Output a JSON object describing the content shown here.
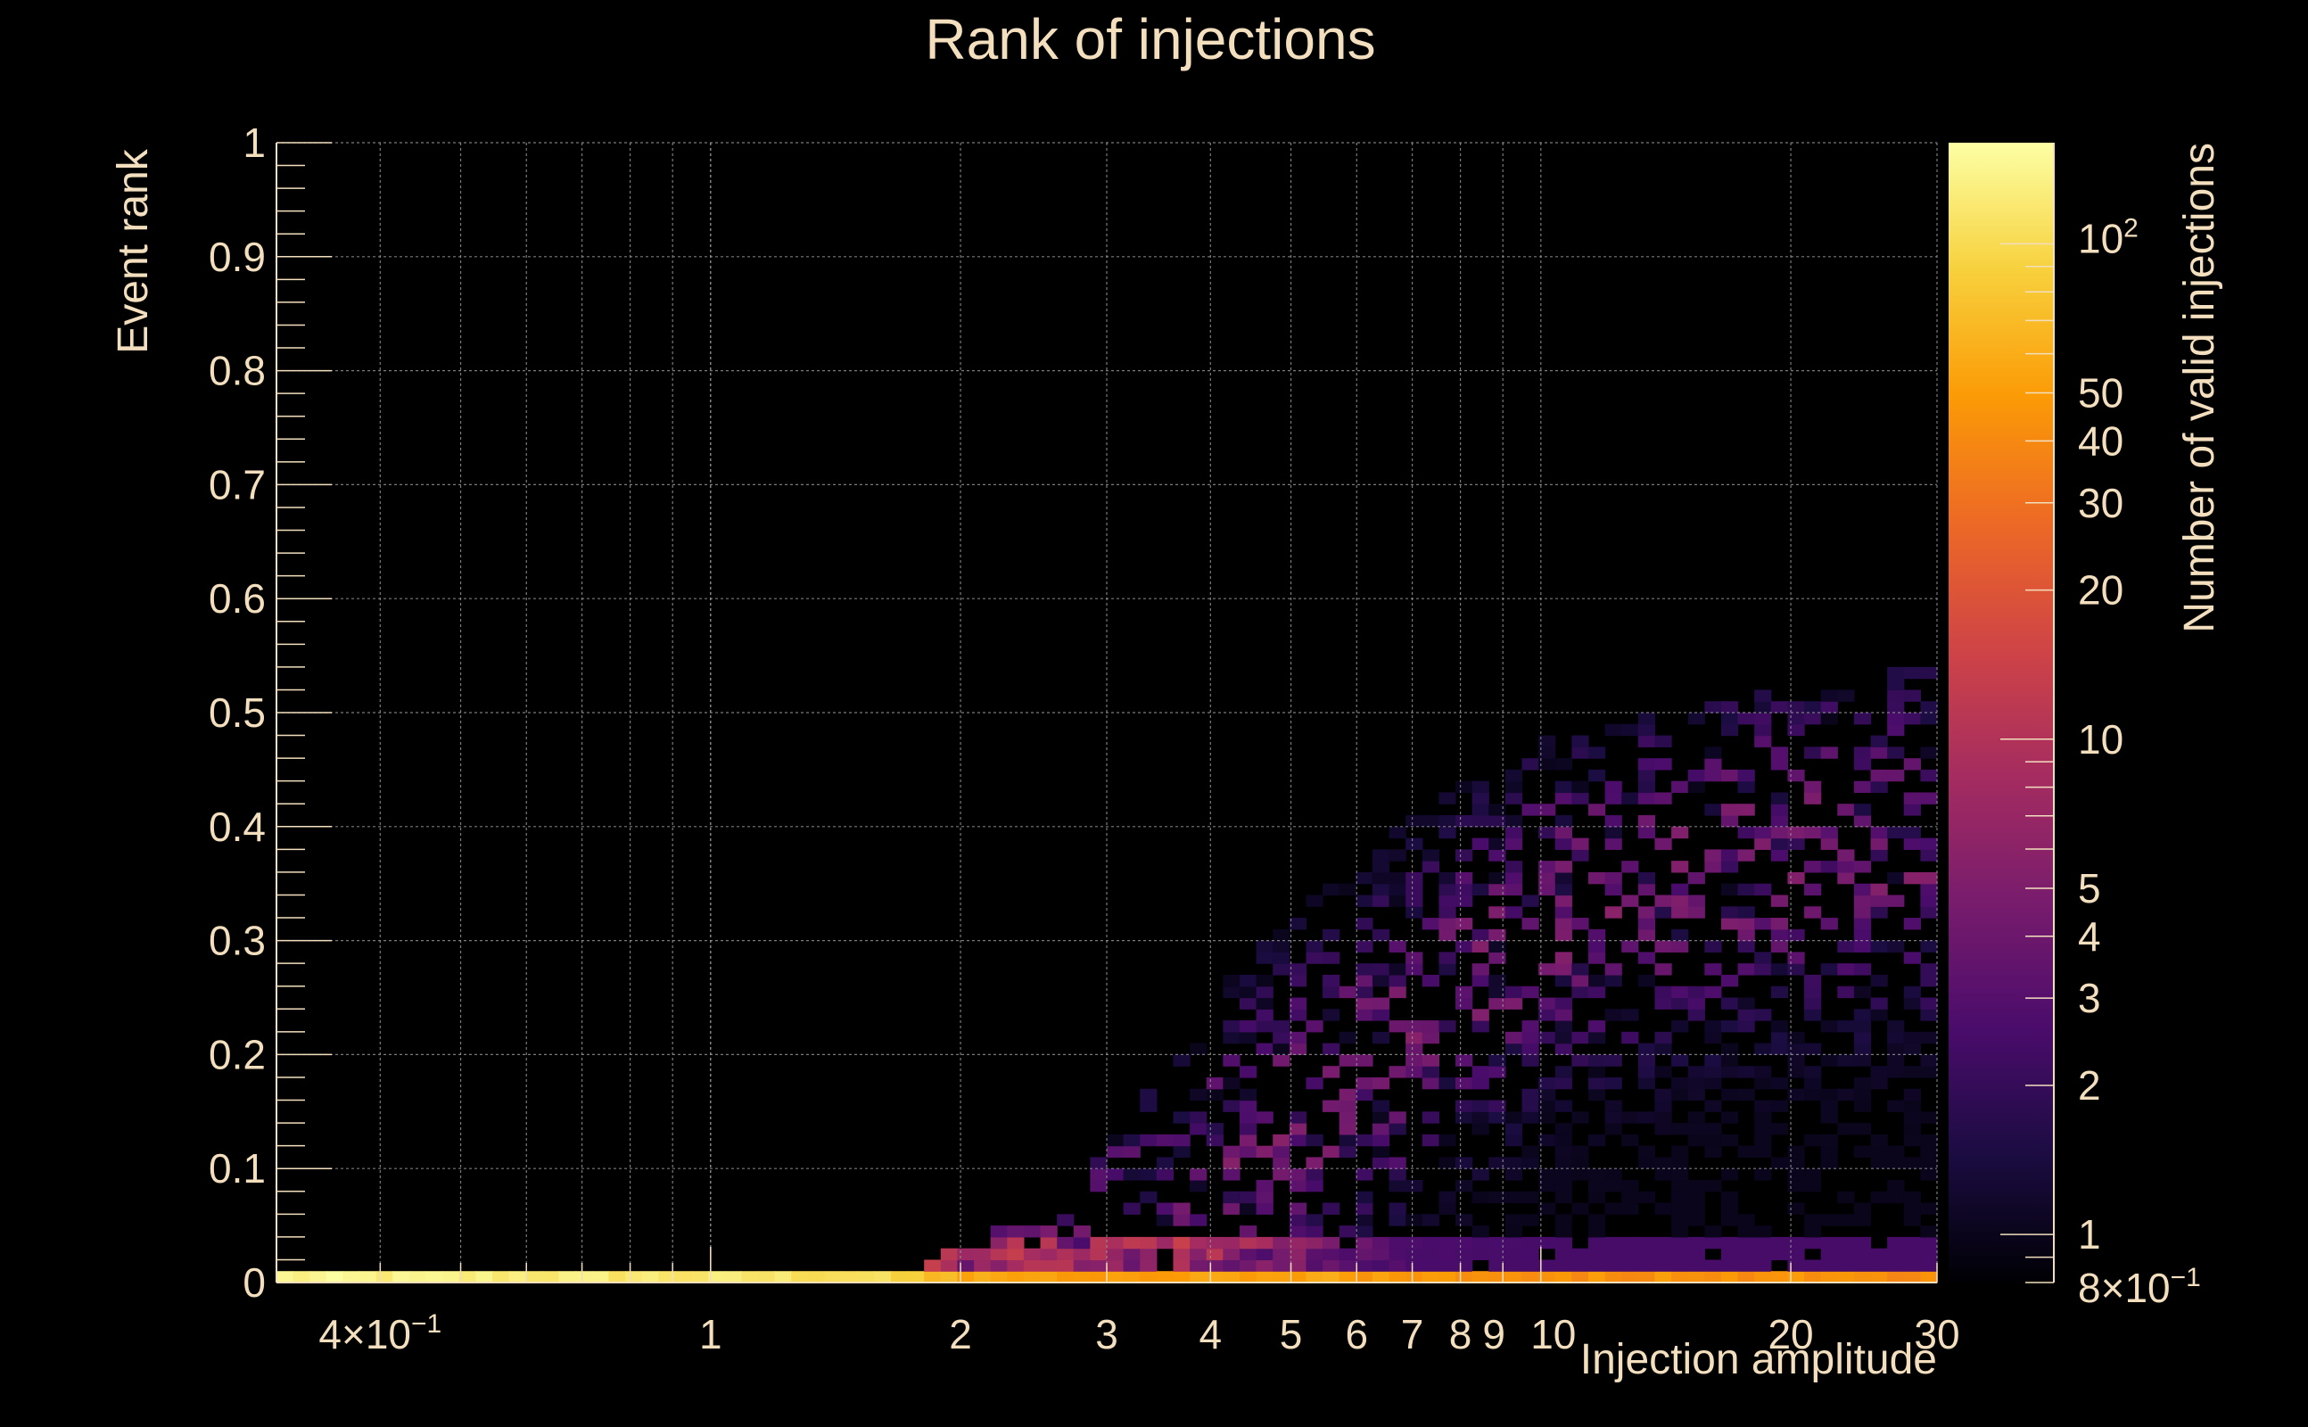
{
  "chart_data": {
    "type": "heatmap",
    "title": "Rank of injections",
    "xlabel": "Injection amplitude",
    "ylabel": "Event rank",
    "zlabel": "Number of valid injections",
    "x_scale": "log",
    "z_scale": "log",
    "xlim": [
      0.3,
      30
    ],
    "ylim": [
      0,
      1
    ],
    "zlim": [
      0.8,
      160
    ],
    "grid": true,
    "x_ticks": [
      {
        "value": 0.4,
        "label": "4×10",
        "sup": "−1"
      },
      {
        "value": 1,
        "label": "1"
      },
      {
        "value": 2,
        "label": "2"
      },
      {
        "value": 3,
        "label": "3"
      },
      {
        "value": 4,
        "label": "4"
      },
      {
        "value": 5,
        "label": "5"
      },
      {
        "value": 6,
        "label": "6"
      },
      {
        "value": 7,
        "label": "7"
      },
      {
        "value": 8,
        "label": "8"
      },
      {
        "value": 9,
        "label": "9"
      },
      {
        "value": 10,
        "label": "10"
      },
      {
        "value": 20,
        "label": "20"
      },
      {
        "value": 30,
        "label": "30"
      }
    ],
    "y_ticks": [
      "0",
      "0.1",
      "0.2",
      "0.3",
      "0.4",
      "0.5",
      "0.6",
      "0.7",
      "0.8",
      "0.9",
      "1"
    ],
    "z_ticks": [
      {
        "value": 0.8,
        "label": "8×10",
        "sup": "−1"
      },
      {
        "value": 1,
        "label": "1"
      },
      {
        "value": 2,
        "label": "2"
      },
      {
        "value": 3,
        "label": "3"
      },
      {
        "value": 4,
        "label": "4"
      },
      {
        "value": 5,
        "label": "5"
      },
      {
        "value": 10,
        "label": "10"
      },
      {
        "value": 20,
        "label": "20"
      },
      {
        "value": 30,
        "label": "30"
      },
      {
        "value": 40,
        "label": "40"
      },
      {
        "value": 50,
        "label": "50"
      },
      {
        "value": 100,
        "label": "10",
        "sup": "2"
      }
    ],
    "colormap": [
      "#000004",
      "#1b0c41",
      "#4a0c6b",
      "#781c6d",
      "#a52c60",
      "#cf4446",
      "#ed6925",
      "#fb9b06",
      "#f7d13d",
      "#fcffa4"
    ],
    "bins_x": 100,
    "bins_y": 100,
    "bottom_row_counts": [
      {
        "x": 0.3,
        "count": 140
      },
      {
        "x": 1.5,
        "count": 110
      },
      {
        "x": 2.0,
        "count": 60
      },
      {
        "x": 3.0,
        "count": 50
      },
      {
        "x": 5.0,
        "count": 55
      },
      {
        "x": 10.0,
        "count": 45
      },
      {
        "x": 30.0,
        "count": 45
      }
    ],
    "density_envelope": [
      {
        "x": 1.8,
        "rank": 0.02
      },
      {
        "x": 2.5,
        "rank": 0.06
      },
      {
        "x": 3.0,
        "rank": 0.12
      },
      {
        "x": 4.0,
        "rank": 0.25
      },
      {
        "x": 5.0,
        "rank": 0.32
      },
      {
        "x": 7.0,
        "rank": 0.42
      },
      {
        "x": 10.0,
        "rank": 0.48
      },
      {
        "x": 20.0,
        "rank": 0.52
      },
      {
        "x": 30.0,
        "rank": 0.55
      }
    ],
    "peak_band": [
      {
        "x": 4.0,
        "rank": 0.08
      },
      {
        "x": 7.0,
        "rank": 0.22
      },
      {
        "x": 10.0,
        "rank": 0.32
      },
      {
        "x": 20.0,
        "rank": 0.38
      },
      {
        "x": 30.0,
        "rank": 0.38
      }
    ]
  }
}
